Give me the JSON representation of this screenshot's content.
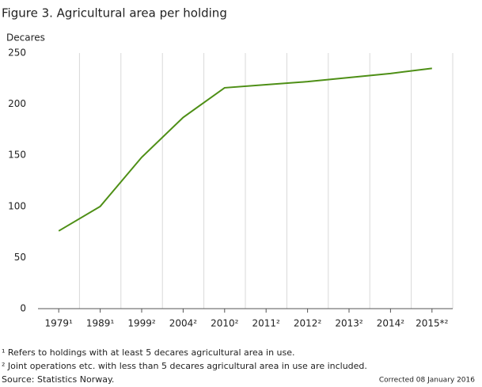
{
  "chart_data": {
    "type": "line",
    "title": "Figure 3. Agricultural area per holding",
    "y_label": "Decares",
    "categories": [
      "1979¹",
      "1989¹",
      "1999²",
      "2004²",
      "2010²",
      "2011²",
      "2012²",
      "2013²",
      "2014²",
      "2015*²"
    ],
    "values": [
      76,
      100,
      148,
      187,
      216,
      219,
      222,
      226,
      230,
      235
    ],
    "color": "#4e8f16",
    "ylim": [
      0,
      250
    ],
    "yticks": [
      0,
      50,
      100,
      150,
      200,
      250
    ],
    "notes": [
      "¹ Refers to holdings with at least 5 decares agricultural area in use.",
      "² Joint operations etc. with less than 5 decares agricultural area in use are included.",
      "Source: Statistics Norway."
    ],
    "corrected": "Corrected 08 January 2016"
  }
}
